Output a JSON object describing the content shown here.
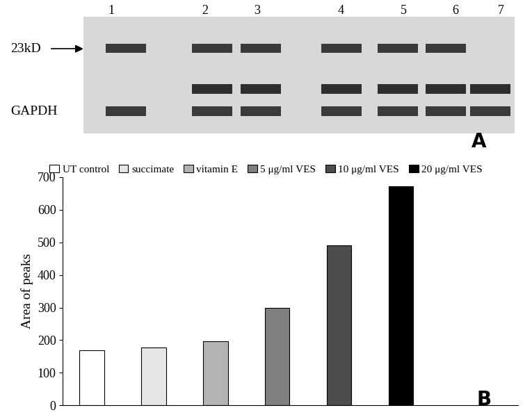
{
  "blot": {
    "lane_labels": [
      "1",
      "2",
      "3",
      "4",
      "5",
      "6",
      "7"
    ],
    "band_labels": [
      "23kD",
      "GAPDH"
    ],
    "panel_label": "A"
  },
  "chart_data": {
    "type": "bar",
    "annotations": [
      "B"
    ],
    "y_label": "Area of peaks",
    "categories": [
      "UT control",
      "succimate",
      "vitamin E",
      "5 μg/ml VES",
      "10 μg/ml VES",
      "20 μg/ml VES"
    ],
    "values": [
      168,
      178,
      197,
      300,
      490,
      672
    ],
    "colors": [
      "#ffffff",
      "#e6e6e6",
      "#b3b3b3",
      "#808080",
      "#4d4d4d",
      "#000000"
    ],
    "ylim": [
      0,
      700
    ],
    "yticks": [
      0,
      100,
      200,
      300,
      400,
      500,
      600,
      700
    ],
    "grid": false,
    "legend": "upper center",
    "tick_labels": "y"
  }
}
